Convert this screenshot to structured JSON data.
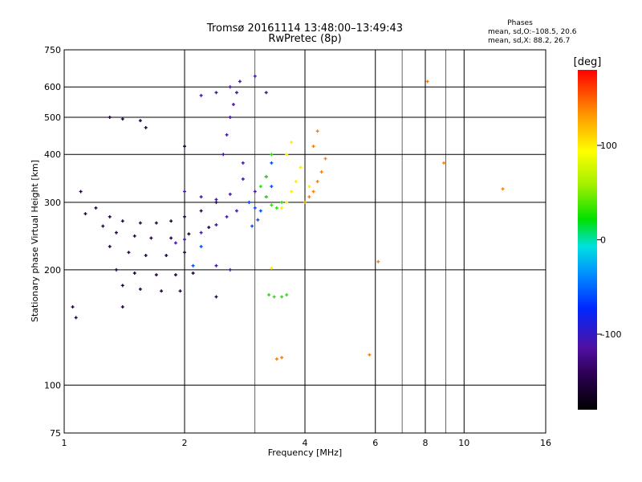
{
  "chart_data": {
    "type": "scatter",
    "title": "Tromsø 20161114 13:48:00–13:49:43",
    "subtitle": "RwPretec (8p)",
    "xlabel": "Frequency [MHz]",
    "ylabel": "Stationary phase Virtual Height [km]",
    "x_scale": "log",
    "y_scale": "log",
    "xlim": [
      1,
      16
    ],
    "ylim": [
      75,
      750
    ],
    "grid": true,
    "x_ticks": [
      1,
      2,
      4,
      6,
      8,
      10,
      16
    ],
    "x_tick_labels": [
      "1",
      "2",
      "4",
      "6",
      "8",
      "10",
      "16"
    ],
    "y_ticks": [
      75,
      100,
      200,
      300,
      400,
      500,
      600,
      750
    ],
    "y_tick_labels": [
      "75",
      "100",
      "200",
      "300",
      "400",
      "500",
      "600",
      "750"
    ],
    "legend": {
      "title": "Phases",
      "line1": "mean, sd,O:–108.5, 20.6",
      "line2": "mean, sd,X:  88.2, 26.7",
      "position": "top-right"
    },
    "colorbar": {
      "label": "[deg]",
      "range": [
        -180,
        180
      ],
      "ticks": [
        100,
        0,
        -100
      ],
      "tick_labels": [
        "100",
        "0",
        "–100"
      ]
    },
    "series": [
      {
        "name": "traces-violet",
        "color_deg": -150,
        "x": [
          1.2,
          1.3,
          1.4,
          1.55,
          1.7,
          1.85,
          2.0,
          2.2,
          2.4,
          1.25,
          1.35,
          1.5,
          1.65,
          1.85,
          2.05,
          2.3,
          1.3,
          1.45,
          1.6,
          1.8,
          2.0,
          1.35,
          1.5,
          1.7,
          1.9,
          2.1,
          1.4,
          1.55,
          1.75,
          1.95,
          1.3,
          1.4,
          1.55,
          1.6,
          2.0,
          1.1,
          1.13,
          1.05,
          1.07,
          1.4,
          2.4
        ],
        "y": [
          290,
          275,
          268,
          265,
          265,
          268,
          275,
          285,
          300,
          260,
          250,
          245,
          242,
          242,
          248,
          258,
          230,
          222,
          218,
          218,
          222,
          200,
          196,
          194,
          194,
          196,
          182,
          178,
          176,
          176,
          500,
          495,
          490,
          470,
          420,
          320,
          280,
          160,
          150,
          160,
          170
        ]
      },
      {
        "name": "traces-blue",
        "color_deg": -110,
        "x": [
          1.9,
          2.0,
          2.2,
          2.4,
          2.55,
          2.7,
          2.9,
          3.0,
          2.0,
          2.2,
          2.4,
          2.6,
          2.8,
          2.5,
          2.55,
          2.6,
          2.65,
          2.7,
          2.75,
          2.8,
          2.2,
          2.4,
          2.6,
          2.4,
          2.6,
          3.0,
          3.2
        ],
        "y": [
          235,
          240,
          250,
          262,
          275,
          285,
          300,
          320,
          320,
          310,
          305,
          315,
          345,
          400,
          450,
          500,
          540,
          580,
          620,
          380,
          570,
          580,
          600,
          205,
          200,
          640,
          580
        ]
      },
      {
        "name": "traces-cyan",
        "color_deg": -60,
        "x": [
          2.9,
          3.0,
          3.1,
          3.2,
          3.3,
          3.2,
          3.3,
          2.95,
          3.05,
          2.1,
          2.2
        ],
        "y": [
          300,
          290,
          285,
          310,
          330,
          350,
          380,
          260,
          270,
          205,
          230
        ]
      },
      {
        "name": "traces-green",
        "color_deg": 30,
        "x": [
          3.1,
          3.2,
          3.3,
          3.4,
          3.5,
          3.2,
          3.3,
          3.25,
          3.35,
          3.5,
          3.6
        ],
        "y": [
          330,
          310,
          295,
          290,
          300,
          350,
          400,
          172,
          170,
          170,
          172
        ]
      },
      {
        "name": "traces-yellow",
        "color_deg": 100,
        "x": [
          3.5,
          3.6,
          3.7,
          3.8,
          3.9,
          3.6,
          3.7,
          3.3,
          4.0,
          4.1
        ],
        "y": [
          290,
          300,
          320,
          340,
          370,
          400,
          430,
          202,
          300,
          330
        ]
      },
      {
        "name": "traces-orange",
        "color_deg": 140,
        "x": [
          4.0,
          4.1,
          4.2,
          4.3,
          4.4,
          4.5,
          4.2,
          4.3,
          3.4,
          3.5,
          5.8,
          6.1,
          8.1,
          8.9,
          12.5
        ],
        "y": [
          300,
          310,
          320,
          340,
          360,
          390,
          420,
          460,
          117,
          118,
          120,
          210,
          620,
          380,
          325
        ]
      }
    ]
  }
}
